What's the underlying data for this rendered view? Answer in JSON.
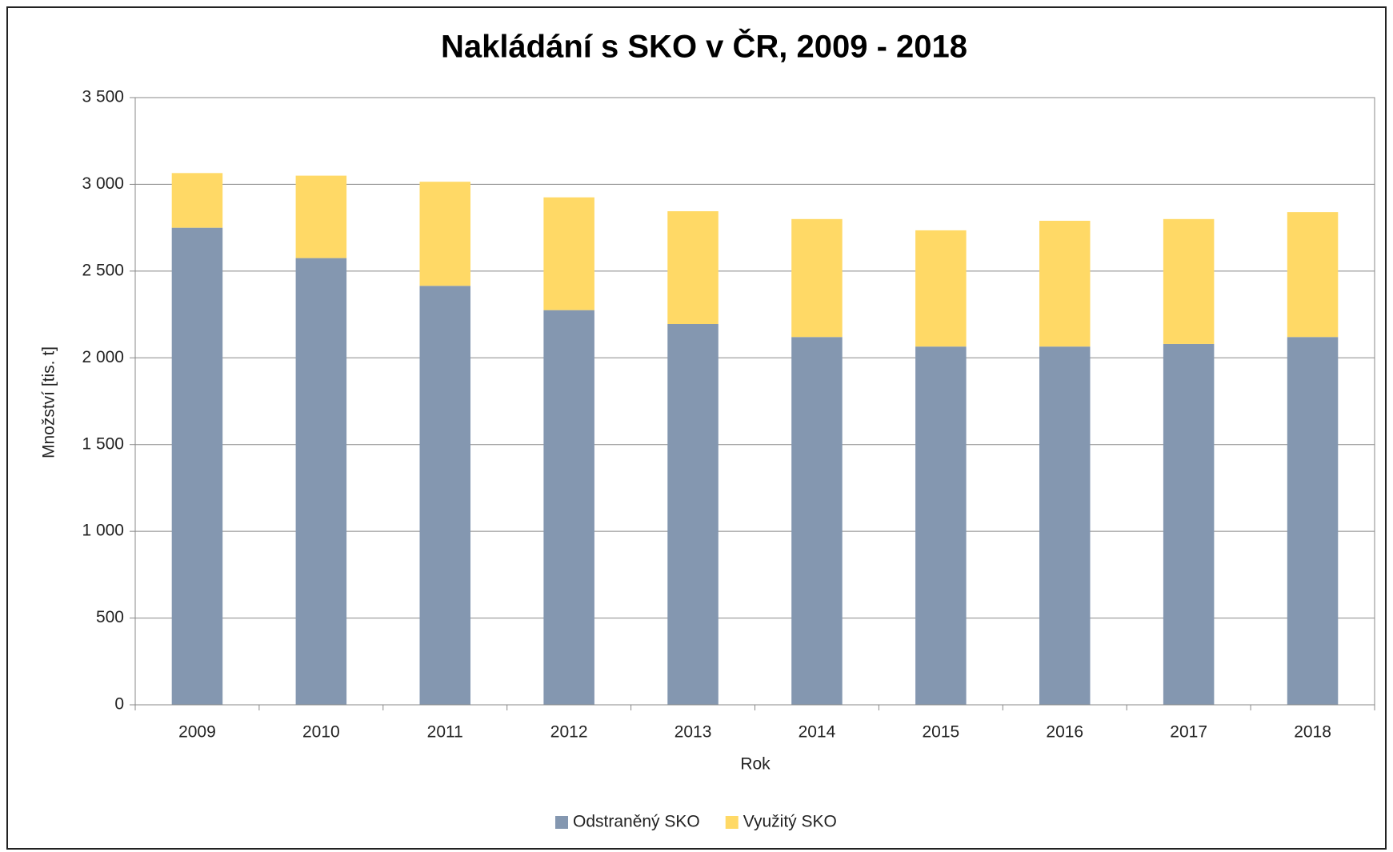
{
  "chart_data": {
    "type": "bar",
    "stacked": true,
    "title": "Nakládání s SKO v ČR, 2009 - 2018",
    "x_label": "Rok",
    "y_label": "Množství [tis. t]",
    "categories": [
      "2009",
      "2010",
      "2011",
      "2012",
      "2013",
      "2014",
      "2015",
      "2016",
      "2017",
      "2018"
    ],
    "series": [
      {
        "name": "Odstraněný SKO",
        "color": "#8497b0",
        "values": [
          2750,
          2575,
          2415,
          2275,
          2195,
          2120,
          2065,
          2065,
          2080,
          2120
        ]
      },
      {
        "name": "Využitý SKO",
        "color": "#ffd966",
        "values": [
          315,
          475,
          600,
          650,
          650,
          680,
          670,
          725,
          720,
          720
        ]
      }
    ],
    "ylim": [
      0,
      3500
    ],
    "yticks": [
      0,
      500,
      {
        "value": 1000,
        "label": "1 000"
      },
      {
        "value": 1500,
        "label": "1 500"
      },
      {
        "value": 2000,
        "label": "2 000"
      },
      {
        "value": 2500,
        "label": "2 500"
      },
      {
        "value": 3000,
        "label": "3 000"
      },
      {
        "value": 3500,
        "label": "3 500"
      }
    ],
    "grid": true,
    "legend": "bottom"
  }
}
